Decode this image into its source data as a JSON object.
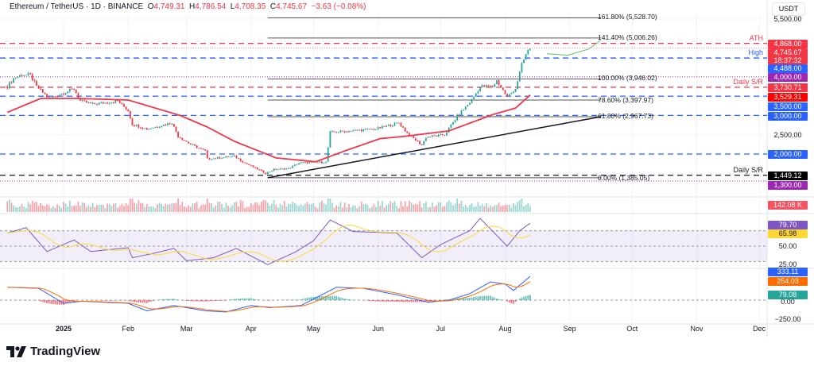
{
  "header": {
    "symbol": "Ethereum / TetherUS · 1D · BINANCE",
    "open_label": "O",
    "open": "4,749.31",
    "high_label": "H",
    "high": "4,786.54",
    "low_label": "L",
    "low": "4,708.35",
    "close_label": "C",
    "close": "4,745.67",
    "change": "−3.63 (−0.08%)"
  },
  "price_axis": {
    "currency": "USDT",
    "ticks": [
      "5,500.00",
      "2,500.00"
    ],
    "badges": {
      "ath": "4,868.00",
      "last": "4,745.67",
      "countdown": "18:37:32",
      "high": "4,488.00",
      "p4000": "4,000.00",
      "dsr_upper": "3,730.71",
      "ma": "3,529.31",
      "p3500": "3,500.00",
      "p3000": "3,000.00",
      "p2000": "2,000.00",
      "dsr_lower": "1,449.12",
      "p1300": "1,300.00"
    }
  },
  "level_labels": {
    "ath": "ATH",
    "high": "High",
    "dsr_upper": "Daily S/R",
    "dsr_lower": "Daily S/R"
  },
  "colors": {
    "up": "#26a69a",
    "down": "#f23645",
    "ma": "#f23645",
    "blue_level": "#2962ff",
    "purple_level": "#9c27b0",
    "rsi": "#7e57c2",
    "rsi_ma": "#fdd835",
    "macd": "#2962ff",
    "signal": "#ff6d00"
  },
  "volume_pane": {
    "last": "142.08 K"
  },
  "rsi_pane": {
    "rsi": "79.70",
    "rsi_ma": "65.98",
    "ticks": [
      "50.00",
      "25.00"
    ]
  },
  "macd_pane": {
    "macd": "333.11",
    "signal": "254.03",
    "hist": "79.08",
    "ticks": [
      "0.00",
      "−250.00"
    ]
  },
  "time_axis": [
    {
      "label": "2025",
      "date": "2025-01-01"
    },
    {
      "label": "Feb",
      "date": "2025-02-01"
    },
    {
      "label": "Mar",
      "date": "2025-03-01"
    },
    {
      "label": "Apr",
      "date": "2025-04-01"
    },
    {
      "label": "May",
      "date": "2025-05-01"
    },
    {
      "label": "Jun",
      "date": "2025-06-01"
    },
    {
      "label": "Jul",
      "date": "2025-07-01"
    },
    {
      "label": "Aug",
      "date": "2025-08-01"
    },
    {
      "label": "Sep",
      "date": "2025-09-01"
    },
    {
      "label": "Oct",
      "date": "2025-10-01"
    },
    {
      "label": "Nov",
      "date": "2025-11-01"
    },
    {
      "label": "Dec",
      "date": "2025-12-01"
    }
  ],
  "logo": "TradingView",
  "chart_data": {
    "type": "candlestick",
    "title": "Ethereum / TetherUS · 1D · BINANCE",
    "ylabel": "USDT",
    "ylim": [
      1200,
      5600
    ],
    "xlim": [
      "2024-12-03",
      "2025-12-20"
    ],
    "grid": true,
    "closes": [
      [
        "2024-12-05",
        3750
      ],
      [
        "2024-12-08",
        3960
      ],
      [
        "2024-12-12",
        4060
      ],
      [
        "2024-12-16",
        4040
      ],
      [
        "2024-12-19",
        3750
      ],
      [
        "2024-12-25",
        3440
      ],
      [
        "2025-01-06",
        3690
      ],
      [
        "2025-01-09",
        3375
      ],
      [
        "2025-01-15",
        3290
      ],
      [
        "2025-01-27",
        3375
      ],
      [
        "2025-02-01",
        3125
      ],
      [
        "2025-02-03",
        2770
      ],
      [
        "2025-02-10",
        2650
      ],
      [
        "2025-02-22",
        2810
      ],
      [
        "2025-02-25",
        2460
      ],
      [
        "2025-03-03",
        2250
      ],
      [
        "2025-03-10",
        2080
      ],
      [
        "2025-03-11",
        1875
      ],
      [
        "2025-03-24",
        1940
      ],
      [
        "2025-03-29",
        1770
      ],
      [
        "2025-04-08",
        1500
      ],
      [
        "2025-04-12",
        1600
      ],
      [
        "2025-04-19",
        1625
      ],
      [
        "2025-04-24",
        1770
      ],
      [
        "2025-05-07",
        1790
      ],
      [
        "2025-05-09",
        2560
      ],
      [
        "2025-05-19",
        2600
      ],
      [
        "2025-05-31",
        2650
      ],
      [
        "2025-06-11",
        2810
      ],
      [
        "2025-06-15",
        2540
      ],
      [
        "2025-06-22",
        2230
      ],
      [
        "2025-06-24",
        2440
      ],
      [
        "2025-07-03",
        2500
      ],
      [
        "2025-07-09",
        2980
      ],
      [
        "2025-07-16",
        3400
      ],
      [
        "2025-07-20",
        3750
      ],
      [
        "2025-07-26",
        3750
      ],
      [
        "2025-07-28",
        3900
      ],
      [
        "2025-08-02",
        3480
      ],
      [
        "2025-08-06",
        3700
      ],
      [
        "2025-08-09",
        4310
      ],
      [
        "2025-08-11",
        4580
      ],
      [
        "2025-08-13",
        4745.67
      ]
    ],
    "moving_average": [
      [
        "2024-12-05",
        3080
      ],
      [
        "2024-12-21",
        3440
      ],
      [
        "2025-01-08",
        3440
      ],
      [
        "2025-02-01",
        3400
      ],
      [
        "2025-02-26",
        3000
      ],
      [
        "2025-03-11",
        2700
      ],
      [
        "2025-03-24",
        2330
      ],
      [
        "2025-04-13",
        1900
      ],
      [
        "2025-05-02",
        1800
      ],
      [
        "2025-05-16",
        2080
      ],
      [
        "2025-06-02",
        2400
      ],
      [
        "2025-06-14",
        2460
      ],
      [
        "2025-07-05",
        2600
      ],
      [
        "2025-07-26",
        3020
      ],
      [
        "2025-08-06",
        3190
      ],
      [
        "2025-08-13",
        3529.31
      ]
    ],
    "levels": [
      {
        "price": 4868.0,
        "label": "ATH",
        "color": "#f23645",
        "style": "dashed"
      },
      {
        "price": 4745.67,
        "color": "#f23645",
        "style": "dotted"
      },
      {
        "price": 4488.0,
        "label": "High",
        "color": "#2962ff",
        "style": "dashed"
      },
      {
        "price": 4000.0,
        "color": "#9c27b0",
        "style": "dotted"
      },
      {
        "price": 3730.71,
        "label": "Daily S/R",
        "color": "#f23645",
        "style": "dashed"
      },
      {
        "price": 3500.0,
        "color": "#2962ff",
        "style": "dashed"
      },
      {
        "price": 3000.0,
        "color": "#2962ff",
        "style": "dashed"
      },
      {
        "price": 2000.0,
        "color": "#2962ff",
        "style": "dashed"
      },
      {
        "price": 1449.12,
        "label": "Daily S/R",
        "color": "#131722",
        "style": "dashed"
      },
      {
        "price": 1300.0,
        "color": "#9c27b0",
        "style": "dotted"
      }
    ],
    "fibonacci": {
      "start": "2025-04-09",
      "end": "2025-09-16",
      "levels": [
        {
          "ratio": "161.80%",
          "price": 5528.7,
          "label": "161.80% (5,528.70)"
        },
        {
          "ratio": "141.40%",
          "price": 5006.26,
          "label": "141.40% (5,006.26)"
        },
        {
          "ratio": "100.00%",
          "price": 3946.02,
          "label": "100.00% (3,946.02)"
        },
        {
          "ratio": "78.60%",
          "price": 3397.97,
          "label": "78.60% (3,397.97)"
        },
        {
          "ratio": "61.80%",
          "price": 2967.73,
          "label": "61.80% (2,967.73)"
        },
        {
          "ratio": "0.00%",
          "price": 1385.05,
          "label": "0.00% (1,385.05)"
        }
      ]
    },
    "trendline": [
      [
        "2025-04-09",
        1385.05
      ],
      [
        "2025-09-16",
        2967.73
      ]
    ],
    "projection": [
      [
        "2025-08-21",
        4600
      ],
      [
        "2025-08-31",
        4560
      ],
      [
        "2025-09-10",
        4720
      ],
      [
        "2025-09-16",
        4950
      ]
    ],
    "rsi": [
      [
        "2024-12-05",
        67
      ],
      [
        "2024-12-14",
        74
      ],
      [
        "2024-12-24",
        43
      ],
      [
        "2025-01-06",
        58
      ],
      [
        "2025-01-14",
        43
      ],
      [
        "2025-02-01",
        48
      ],
      [
        "2025-02-03",
        35
      ],
      [
        "2025-02-12",
        40
      ],
      [
        "2025-02-23",
        47
      ],
      [
        "2025-03-01",
        31
      ],
      [
        "2025-03-14",
        35
      ],
      [
        "2025-03-25",
        47
      ],
      [
        "2025-04-09",
        26
      ],
      [
        "2025-04-22",
        42
      ],
      [
        "2025-05-01",
        57
      ],
      [
        "2025-05-09",
        84
      ],
      [
        "2025-05-20",
        69
      ],
      [
        "2025-06-10",
        67
      ],
      [
        "2025-06-22",
        35
      ],
      [
        "2025-07-01",
        52
      ],
      [
        "2025-07-15",
        70
      ],
      [
        "2025-07-20",
        86
      ],
      [
        "2025-08-02",
        50
      ],
      [
        "2025-08-08",
        70
      ],
      [
        "2025-08-13",
        79.7
      ]
    ],
    "rsi_ylim": [
      20,
      90
    ],
    "macd": [
      [
        "2024-12-05",
        180
      ],
      [
        "2024-12-20",
        165
      ],
      [
        "2025-01-01",
        -45
      ],
      [
        "2025-01-10",
        -15
      ],
      [
        "2025-02-01",
        -45
      ],
      [
        "2025-02-10",
        -150
      ],
      [
        "2025-02-23",
        -75
      ],
      [
        "2025-03-10",
        -150
      ],
      [
        "2025-03-20",
        -165
      ],
      [
        "2025-04-01",
        -75
      ],
      [
        "2025-04-10",
        -105
      ],
      [
        "2025-04-25",
        -75
      ],
      [
        "2025-05-01",
        15
      ],
      [
        "2025-05-12",
        180
      ],
      [
        "2025-05-25",
        165
      ],
      [
        "2025-06-10",
        75
      ],
      [
        "2025-06-25",
        -30
      ],
      [
        "2025-07-05",
        0
      ],
      [
        "2025-07-15",
        90
      ],
      [
        "2025-07-25",
        255
      ],
      [
        "2025-08-01",
        225
      ],
      [
        "2025-08-05",
        135
      ],
      [
        "2025-08-13",
        333.11
      ]
    ],
    "macd_ylim": [
      -300,
      380
    ]
  }
}
